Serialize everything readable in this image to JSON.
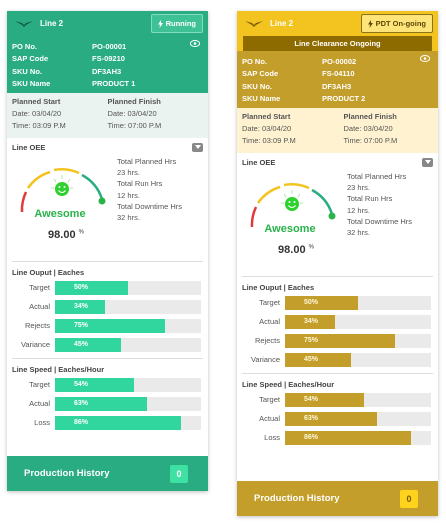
{
  "cards": [
    {
      "line": "Line 2",
      "status": "Running",
      "banner": "",
      "info": [
        {
          "k": "PO No.",
          "v": "PO-00001"
        },
        {
          "k": "SAP Code",
          "v": "FS-09210"
        },
        {
          "k": "SKU No.",
          "v": "DF3AH3"
        },
        {
          "k": "SKU Name",
          "v": "PRODUCT 1"
        }
      ],
      "plan": {
        "start_title": "Planned Start",
        "start_date": "Date: 03/04/20",
        "start_time": "Time: 03:09 P.M",
        "finish_title": "Planned Finish",
        "finish_date": "Date: 03/04/20",
        "finish_time": "Time: 07:00 P.M"
      },
      "oee": {
        "title": "Line OEE",
        "word": "Awesome",
        "value": "98.00",
        "unit": "%",
        "stats": [
          "Total Planned Hrs",
          "23 hrs.",
          "Total Run Hrs",
          "12 hrs.",
          "Total Downtime Hrs",
          "32 hrs."
        ]
      },
      "output": {
        "title": "Line Ouput | Eaches",
        "rows": [
          {
            "label": "Target",
            "pct": 50,
            "text": "50%"
          },
          {
            "label": "Actual",
            "pct": 34,
            "text": "34%"
          },
          {
            "label": "Rejects",
            "pct": 75,
            "text": "75%"
          },
          {
            "label": "Variance",
            "pct": 45,
            "text": "45%"
          }
        ]
      },
      "speed": {
        "title": "Line Speed | Eaches/Hour",
        "rows": [
          {
            "label": "Target",
            "pct": 54,
            "text": "54%"
          },
          {
            "label": "Actual",
            "pct": 63,
            "text": "63%"
          },
          {
            "label": "Loss",
            "pct": 86,
            "text": "86%"
          }
        ]
      },
      "footer": {
        "label": "Production History",
        "count": "0"
      }
    },
    {
      "line": "Line 2",
      "status": "PDT On-going",
      "banner": "Line Clearance Ongoing",
      "info": [
        {
          "k": "PO No.",
          "v": "PO-00002"
        },
        {
          "k": "SAP Code",
          "v": "FS-04110"
        },
        {
          "k": "SKU No.",
          "v": "DF3AH3"
        },
        {
          "k": "SKU Name",
          "v": "PRODUCT 2"
        }
      ],
      "plan": {
        "start_title": "Planned Start",
        "start_date": "Date: 03/04/20",
        "start_time": "Time: 03:09 P.M",
        "finish_title": "Planned Finish",
        "finish_date": "Date: 03/04/20",
        "finish_time": "Time: 07:00 P.M"
      },
      "oee": {
        "title": "Line OEE",
        "word": "Awesome",
        "value": "98.00",
        "unit": "%",
        "stats": [
          "Total Planned Hrs",
          "23 hrs.",
          "Total Run Hrs",
          "12 hrs.",
          "Total Downtime Hrs",
          "32 hrs."
        ]
      },
      "output": {
        "title": "Line Ouput | Eaches",
        "rows": [
          {
            "label": "Target",
            "pct": 50,
            "text": "50%"
          },
          {
            "label": "Actual",
            "pct": 34,
            "text": "34%"
          },
          {
            "label": "Rejects",
            "pct": 75,
            "text": "75%"
          },
          {
            "label": "Variance",
            "pct": 45,
            "text": "45%"
          }
        ]
      },
      "speed": {
        "title": "Line Speed | Eaches/Hour",
        "rows": [
          {
            "label": "Target",
            "pct": 54,
            "text": "54%"
          },
          {
            "label": "Actual",
            "pct": 63,
            "text": "63%"
          },
          {
            "label": "Loss",
            "pct": 86,
            "text": "86%"
          }
        ]
      },
      "footer": {
        "label": "Production History",
        "count": "0"
      }
    }
  ],
  "colors": {
    "running_green": "#2aac83",
    "bar_green": "#30d69e",
    "pdt_yellow": "#f3c320",
    "pdt_gold": "#c39e2b",
    "banner_brown": "#8e6b00",
    "awesome_green": "#29b34a"
  }
}
